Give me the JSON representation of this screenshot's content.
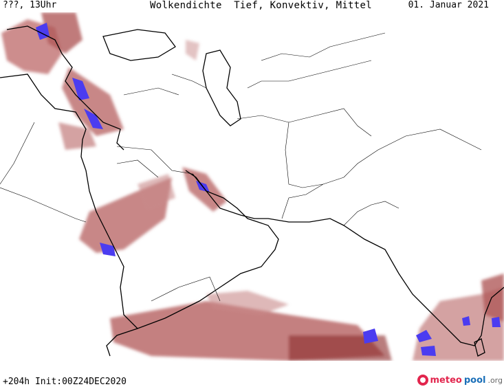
{
  "header": {
    "left": "???, 13Uhr",
    "center": "Wolkendichte  Tief, Konvektiv, Mittel",
    "right": "01. Januar 2021"
  },
  "footer": {
    "info": "+204h Init:00Z24DEC2020",
    "brand_part1": "meteo",
    "brand_part2": "pool",
    "brand_part3": ".org"
  },
  "colors": {
    "cloud_light": "#d9a0a0",
    "cloud_mid": "#b56060",
    "cloud_dark": "#8a2a2a",
    "cloud_dense": "#4b3cf0",
    "coast": "#000000",
    "border": "#000000"
  }
}
